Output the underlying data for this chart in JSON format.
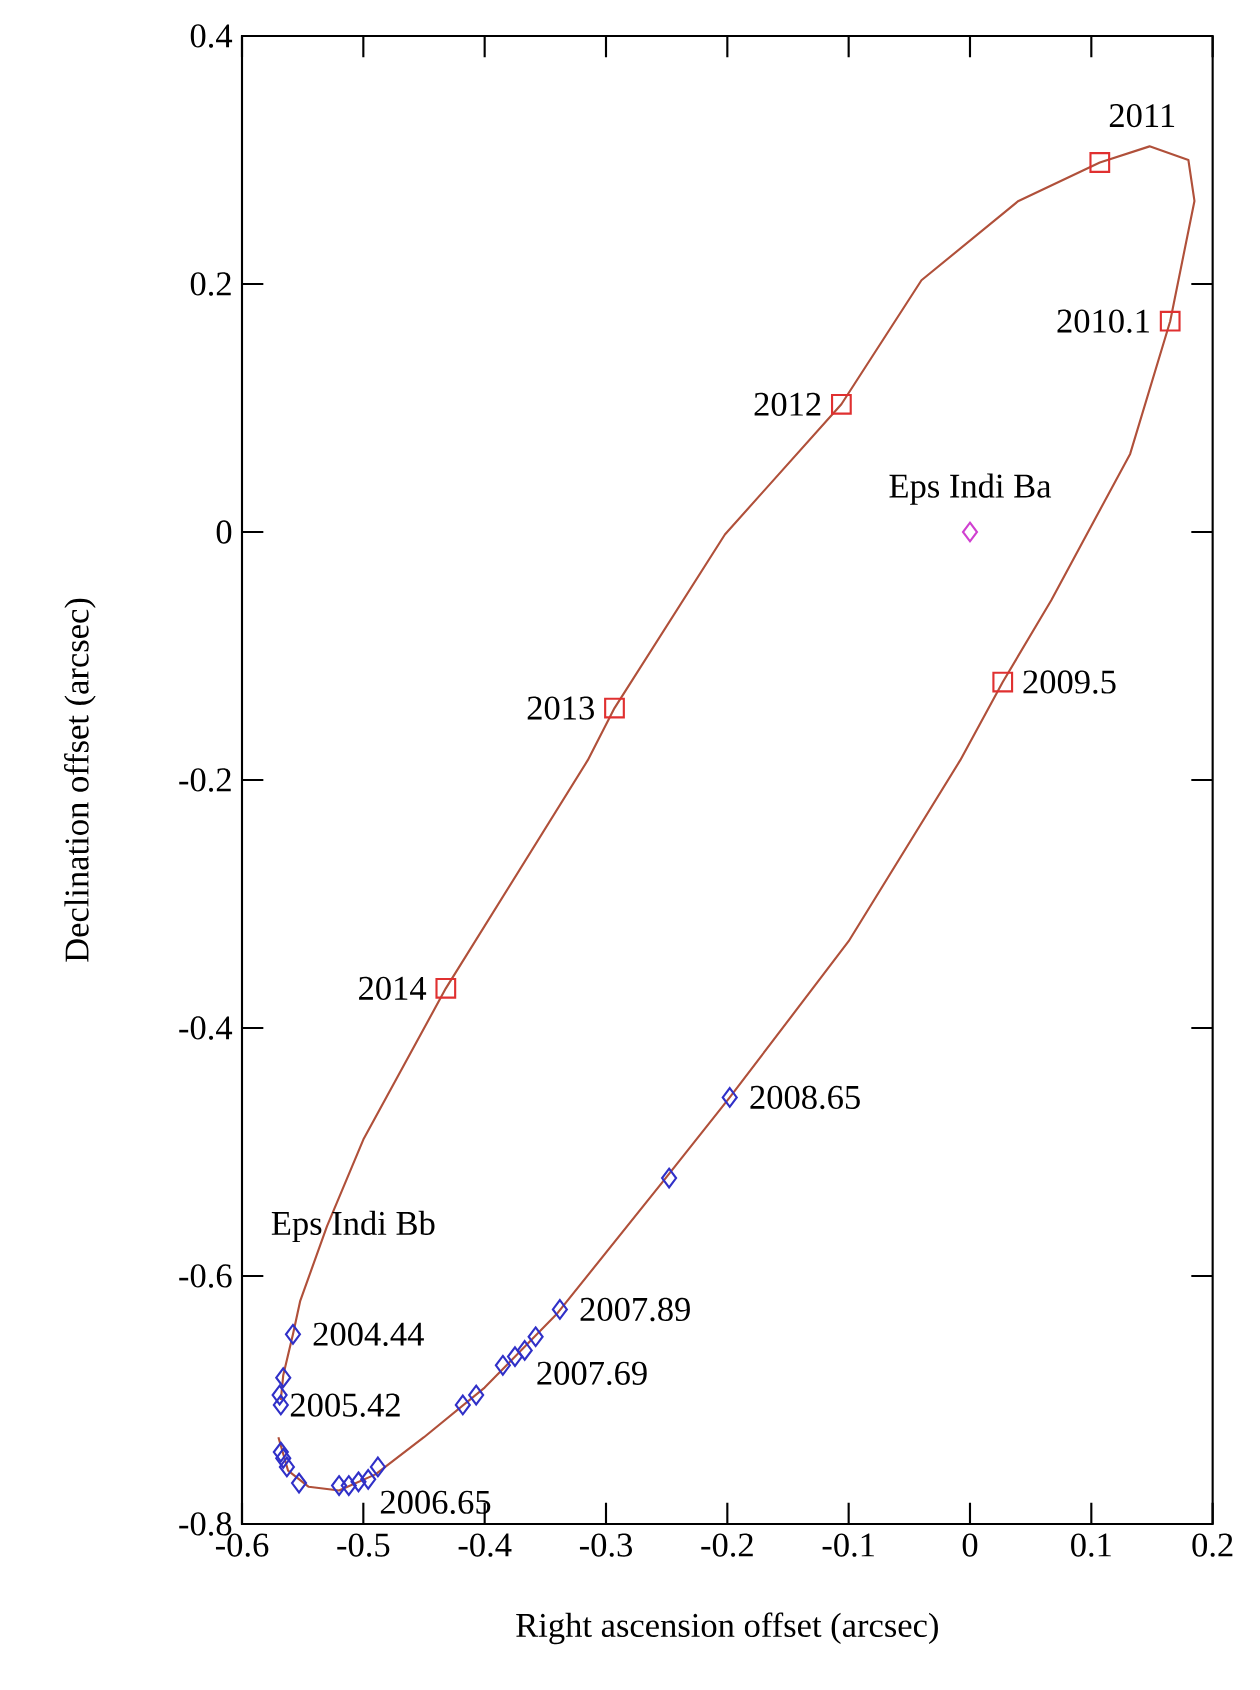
{
  "chart_data": {
    "type": "scatter",
    "xlabel": "Right ascension offset (arcsec)",
    "ylabel": "Declination offset (arcsec)",
    "xlim": [
      -0.6,
      0.2
    ],
    "ylim": [
      -0.8,
      0.4
    ],
    "xticks": [
      -0.6,
      -0.5,
      -0.4,
      -0.3,
      -0.2,
      -0.1,
      0,
      0.1,
      0.2
    ],
    "yticks": [
      -0.8,
      -0.6,
      -0.4,
      -0.2,
      0,
      0.2,
      0.4
    ],
    "series": [
      {
        "type": "line",
        "color": "#b0503a",
        "marker": "none",
        "line_style": "solid",
        "x": [
          -0.57,
          -0.562,
          -0.545,
          -0.52,
          -0.49,
          -0.45,
          -0.4,
          -0.34,
          -0.25,
          -0.198,
          -0.1,
          -0.008,
          0.027,
          0.067,
          0.132,
          0.165,
          0.185,
          0.18,
          0.148,
          0.107,
          0.04,
          -0.04,
          -0.106,
          -0.202,
          -0.293,
          -0.315,
          -0.432,
          -0.5,
          -0.53,
          -0.552,
          -0.558,
          -0.566,
          -0.568
        ],
        "values": [
          -0.73,
          -0.757,
          -0.77,
          -0.773,
          -0.76,
          -0.73,
          -0.69,
          -0.63,
          -0.52,
          -0.456,
          -0.33,
          -0.184,
          -0.121,
          -0.055,
          0.063,
          0.17,
          0.267,
          0.3,
          0.311,
          0.298,
          0.267,
          0.203,
          0.103,
          -0.002,
          -0.142,
          -0.184,
          -0.368,
          -0.49,
          -0.56,
          -0.62,
          -0.647,
          -0.68,
          -0.7
        ]
      },
      {
        "type": "scatter",
        "color": "#3030c8",
        "marker": "diamond",
        "x": [
          -0.558,
          -0.566,
          -0.569,
          -0.568,
          -0.568,
          -0.566,
          -0.563,
          -0.553,
          -0.52,
          -0.512,
          -0.504,
          -0.496,
          -0.488,
          -0.418,
          -0.407,
          -0.385,
          -0.375,
          -0.367,
          -0.358,
          -0.338,
          -0.248,
          -0.198
        ],
        "values": [
          -0.647,
          -0.682,
          -0.696,
          -0.704,
          -0.742,
          -0.747,
          -0.754,
          -0.767,
          -0.769,
          -0.769,
          -0.766,
          -0.764,
          -0.754,
          -0.704,
          -0.696,
          -0.672,
          -0.665,
          -0.66,
          -0.649,
          -0.627,
          -0.521,
          -0.456
        ]
      },
      {
        "type": "scatter",
        "color": "#e03030",
        "marker": "square",
        "x": [
          0.027,
          0.165,
          0.107,
          -0.106,
          -0.293,
          -0.432
        ],
        "values": [
          -0.121,
          0.17,
          0.298,
          0.103,
          -0.142,
          -0.368
        ]
      },
      {
        "type": "scatter",
        "color": "#d040d0",
        "marker": "diamond",
        "x": [
          0
        ],
        "values": [
          0
        ]
      }
    ],
    "annotations": [
      {
        "text": "2011",
        "x": 0.107,
        "y": 0.298
      },
      {
        "text": "2010.1",
        "x": 0.165,
        "y": 0.17
      },
      {
        "text": "2012",
        "x": -0.106,
        "y": 0.103
      },
      {
        "text": "Eps Indi Ba",
        "x": 0,
        "y": 0
      },
      {
        "text": "2009.5",
        "x": 0.027,
        "y": -0.121
      },
      {
        "text": "2013",
        "x": -0.293,
        "y": -0.142
      },
      {
        "text": "2014",
        "x": -0.432,
        "y": -0.368
      },
      {
        "text": "2008.65",
        "x": -0.198,
        "y": -0.456
      },
      {
        "text": "2007.89",
        "x": -0.338,
        "y": -0.627
      },
      {
        "text": "2007.69",
        "x": -0.367,
        "y": -0.66
      },
      {
        "text": "2004.44",
        "x": -0.558,
        "y": -0.647
      },
      {
        "text": "2005.42",
        "x": -0.568,
        "y": -0.742
      },
      {
        "text": "2006.65",
        "x": -0.496,
        "y": -0.764
      },
      "Eps Indi Bb"
    ]
  }
}
